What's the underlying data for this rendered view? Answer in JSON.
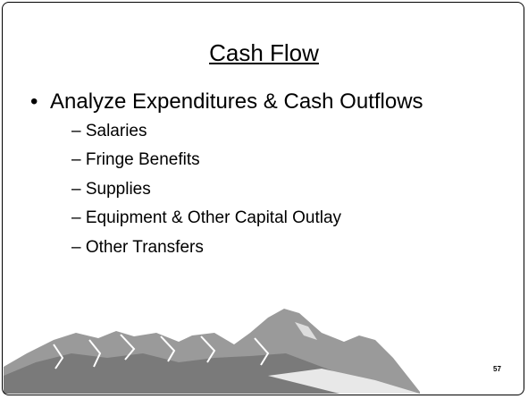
{
  "slide": {
    "title": "Cash Flow",
    "bullet": "Analyze Expenditures & Cash Outflows",
    "subitems": [
      "– Salaries",
      "– Fringe Benefits",
      "– Supplies",
      "– Equipment & Other Capital Outlay",
      "– Other Transfers"
    ],
    "page_number": "57"
  }
}
